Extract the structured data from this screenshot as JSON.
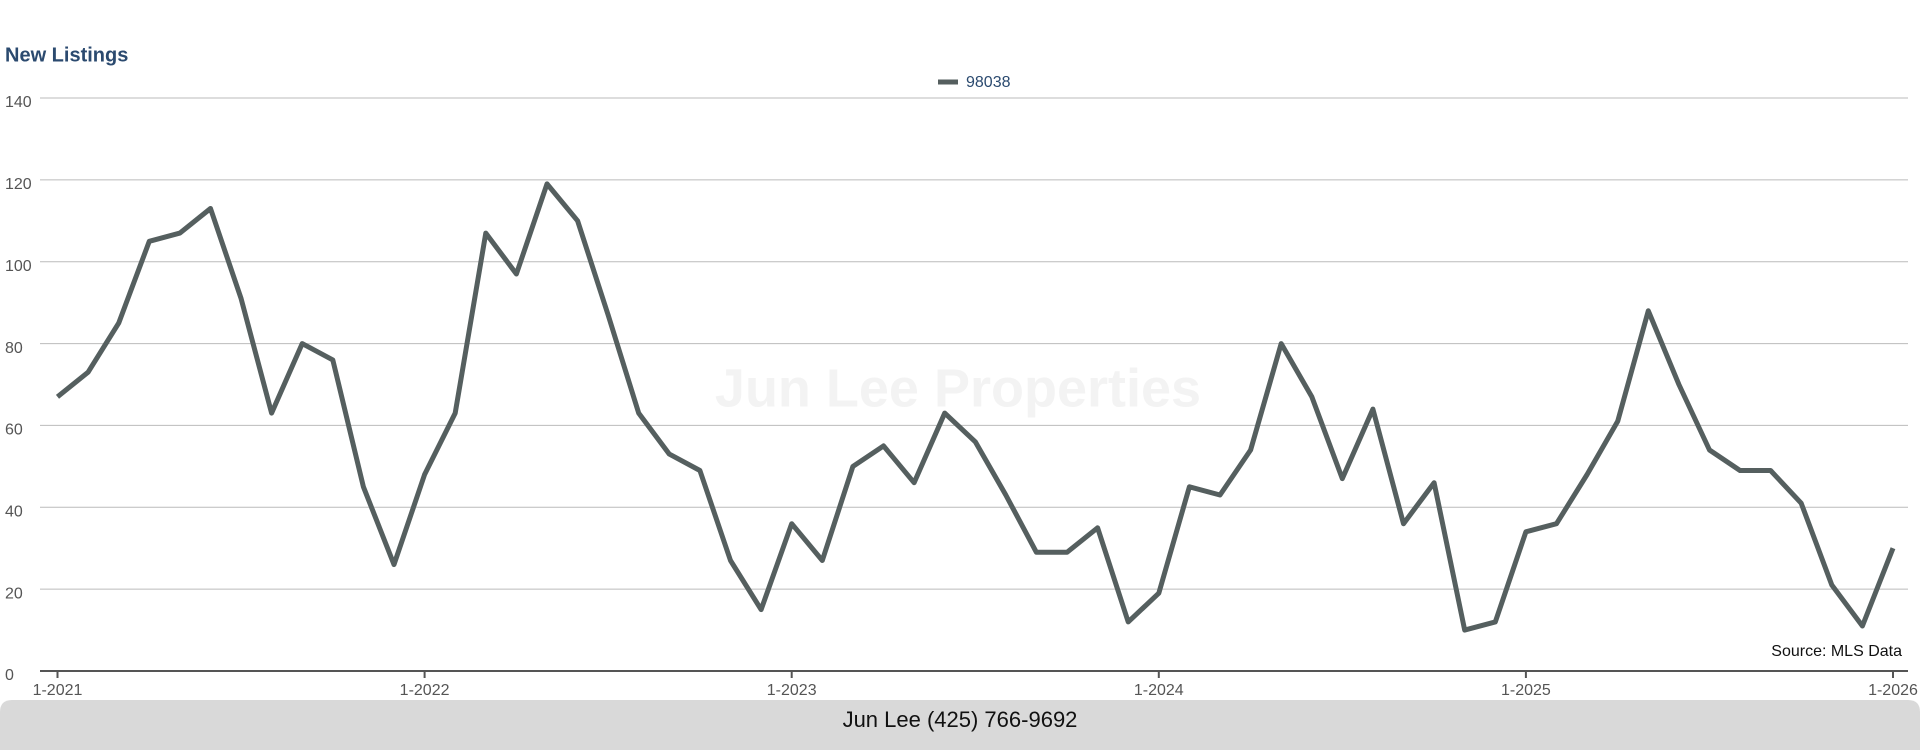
{
  "chart_data": {
    "type": "line",
    "title": "New Listings",
    "watermark": "Jun Lee Properties",
    "source": "Source: MLS Data",
    "footer": "Jun Lee (425) 766-9692",
    "categories": [
      "1-2021",
      null,
      null,
      null,
      null,
      null,
      null,
      null,
      null,
      null,
      null,
      null,
      "1-2022",
      null,
      null,
      null,
      null,
      null,
      null,
      null,
      null,
      null,
      null,
      null,
      "1-2023",
      null,
      null,
      null,
      null,
      null,
      null,
      null,
      null,
      null,
      null,
      null,
      "1-2024",
      null,
      null,
      null,
      null,
      null,
      null,
      null,
      null,
      null,
      null,
      null,
      "1-2025",
      null,
      null,
      null,
      null,
      null,
      null,
      null,
      null,
      null,
      null,
      null,
      "1-2026"
    ],
    "series": [
      {
        "name": "98038",
        "color": "#555f5f",
        "values": [
          67,
          73,
          85,
          105,
          107,
          113,
          91,
          63,
          80,
          76,
          45,
          26,
          48,
          63,
          107,
          97,
          119,
          110,
          87,
          63,
          53,
          49,
          27,
          15,
          36,
          27,
          50,
          55,
          46,
          63,
          56,
          43,
          29,
          29,
          35,
          12,
          19,
          45,
          43,
          54,
          80,
          67,
          47,
          64,
          36,
          46,
          10,
          12,
          34,
          36,
          48,
          61,
          88,
          70,
          54,
          49,
          49,
          41,
          21,
          11,
          30
        ]
      }
    ],
    "ylim": [
      0,
      140
    ],
    "yticks": [
      0,
      20,
      40,
      60,
      80,
      100,
      120,
      140
    ],
    "grid": true,
    "legend": "top"
  }
}
